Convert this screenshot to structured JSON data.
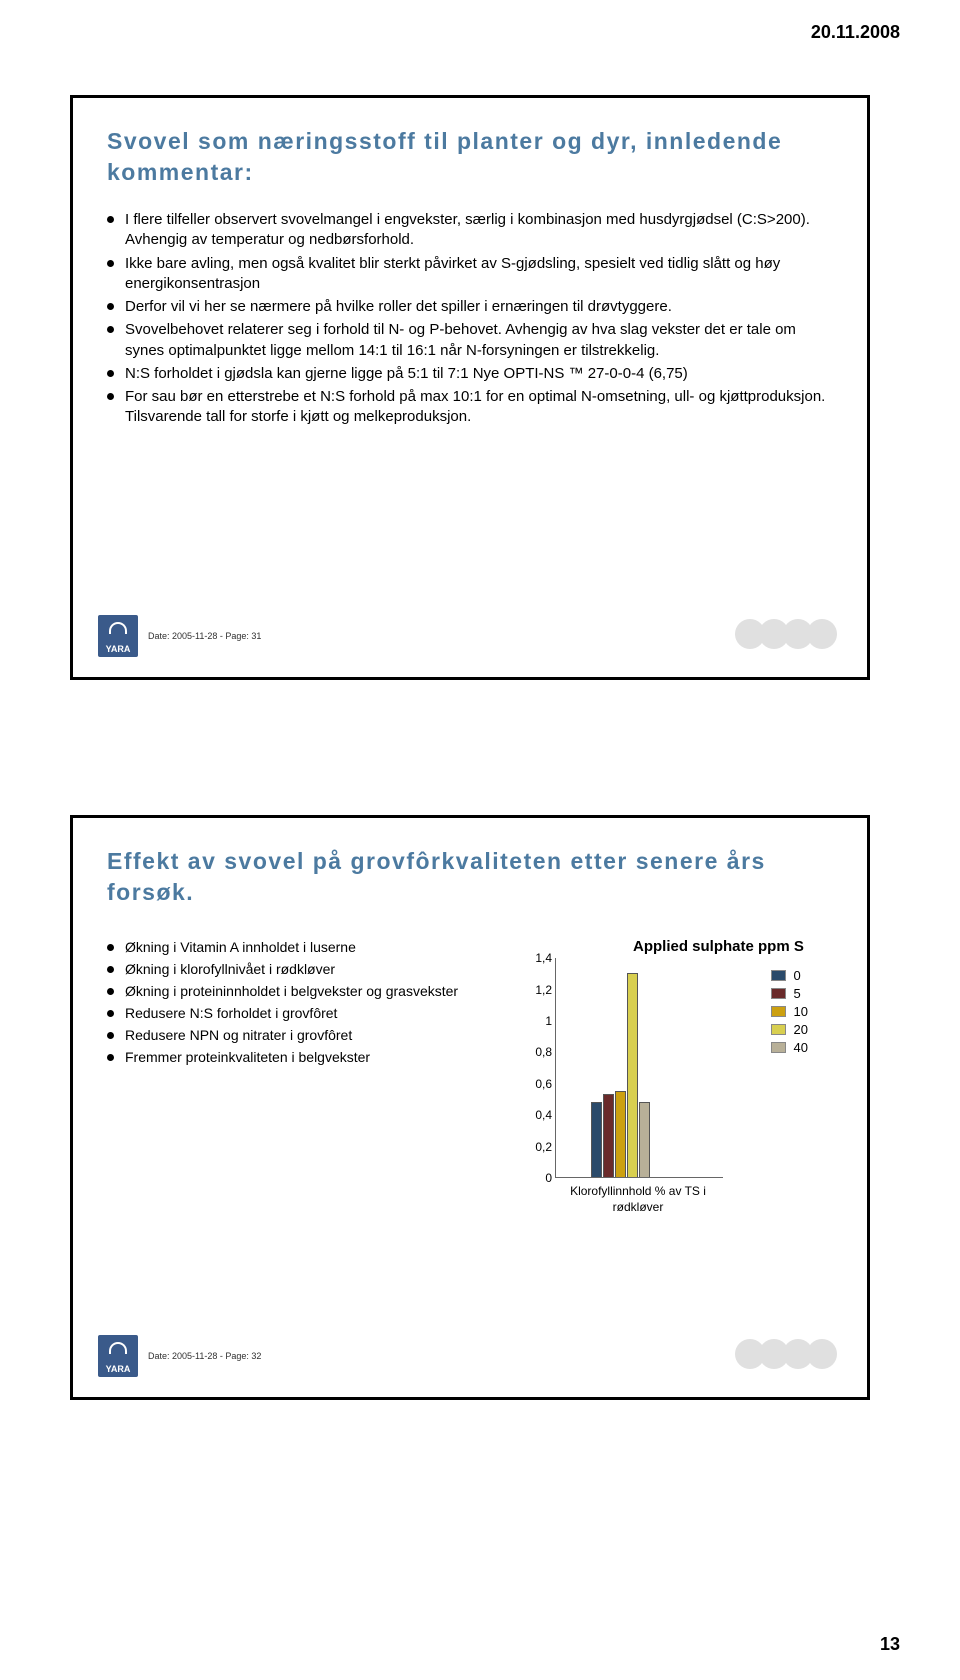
{
  "header": {
    "date": "20.11.2008"
  },
  "pageNumber": "13",
  "slide1": {
    "title_color": "#4c7aa0",
    "title": "Svovel som næringsstoff til planter og dyr, innledende kommentar:",
    "bullets": [
      "I flere tilfeller observert svovelmangel i engvekster, særlig i kombinasjon med husdyrgjødsel (C:S>200). Avhengig av temperatur og nedbørsforhold.",
      "Ikke bare avling, men også kvalitet blir sterkt påvirket av S-gjødsling, spesielt ved tidlig slått og høy energikonsentrasjon",
      "Derfor vil vi her se nærmere på hvilke roller det spiller i ernæringen til drøvtyggere.",
      "Svovelbehovet relaterer seg i forhold til N- og P-behovet. Avhengig av hva slag vekster det er tale om synes optimalpunktet ligge mellom 14:1 til 16:1 når N-forsyningen er tilstrekkelig.",
      "N:S forholdet i gjødsla kan gjerne ligge på 5:1 til 7:1 Nye OPTI-NS ™ 27-0-0-4 (6,75)",
      "For sau bør en etterstrebe et N:S forhold på max 10:1 for en optimal N-omsetning, ull- og kjøttproduksjon. Tilsvarende tall for storfe i kjøtt og melkeproduksjon."
    ],
    "footer": "Date: 2005-11-28 - Page: 31",
    "logo_text": "YARA"
  },
  "slide2": {
    "title_color": "#4c7aa0",
    "title": "Effekt av svovel på grovfôrkvaliteten etter senere års forsøk.",
    "bullets": [
      "Økning i Vitamin A innholdet i luserne",
      "Økning i klorofyllnivået i rødkløver",
      "Økning i proteininnholdet i belgvekster og grasvekster",
      "Redusere N:S forholdet i grovfôret",
      "Redusere NPN og nitrater i grovfôret",
      "Fremmer proteinkvaliteten i belgvekster"
    ],
    "chart": {
      "legend_title": "Applied sulphate ppm S",
      "legend": [
        {
          "label": "0",
          "color": "#2a4a6a"
        },
        {
          "label": "5",
          "color": "#6a2a2a"
        },
        {
          "label": "10",
          "color": "#cca010"
        },
        {
          "label": "20",
          "color": "#d8cf50"
        },
        {
          "label": "40",
          "color": "#b8b098"
        }
      ],
      "y_ticks": [
        "1,4",
        "1,2",
        "1",
        "0,8",
        "0,6",
        "0,4",
        "0,2",
        "0"
      ],
      "y_max": 1.4,
      "series_values": [
        0.48,
        0.53,
        0.55,
        1.3,
        0.48
      ],
      "x_label": "Klorofyllinnhold % av TS i rødkløver"
    },
    "footer": "Date: 2005-11-28 - Page: 32",
    "logo_text": "YARA"
  }
}
